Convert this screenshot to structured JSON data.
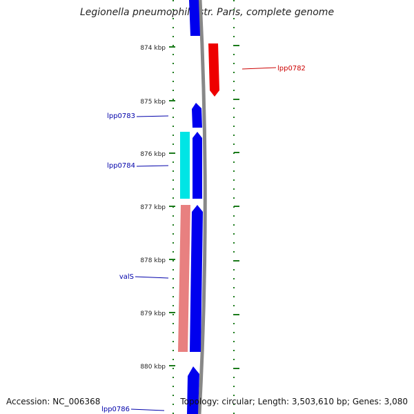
{
  "title": "Legionella pneumophila str. Paris, complete genome",
  "accession": "Accession: NC_006368",
  "topology": "Topology: circular; Length: 3,503,610 bp; Genes: 3,080",
  "ticks": [
    "874 kbp",
    "875 kbp",
    "876 kbp",
    "877 kbp",
    "878 kbp",
    "879 kbp",
    "880 kbp"
  ],
  "genes": [
    {
      "label": "lpp0782",
      "color": "#ee0000",
      "strand": "reverse"
    },
    {
      "label": "lpp0783",
      "color": "#0000cc",
      "strand": "forward"
    },
    {
      "label": "lpp0784",
      "color": "#0000cc",
      "strand": "forward"
    },
    {
      "label": "valS",
      "color": "#0000cc",
      "strand": "forward"
    },
    {
      "label": "lpp0786",
      "color": "#0000cc",
      "strand": "forward"
    }
  ],
  "colors": {
    "forward_gene": "#0000ee",
    "reverse_gene": "#ee0000",
    "cyan_feature": "#00e5e5",
    "pink_feature": "#e88080",
    "backbone": "#888888",
    "ticks": "#1a7a1a",
    "forward_label": "#0000aa",
    "reverse_label": "#cc0000"
  }
}
